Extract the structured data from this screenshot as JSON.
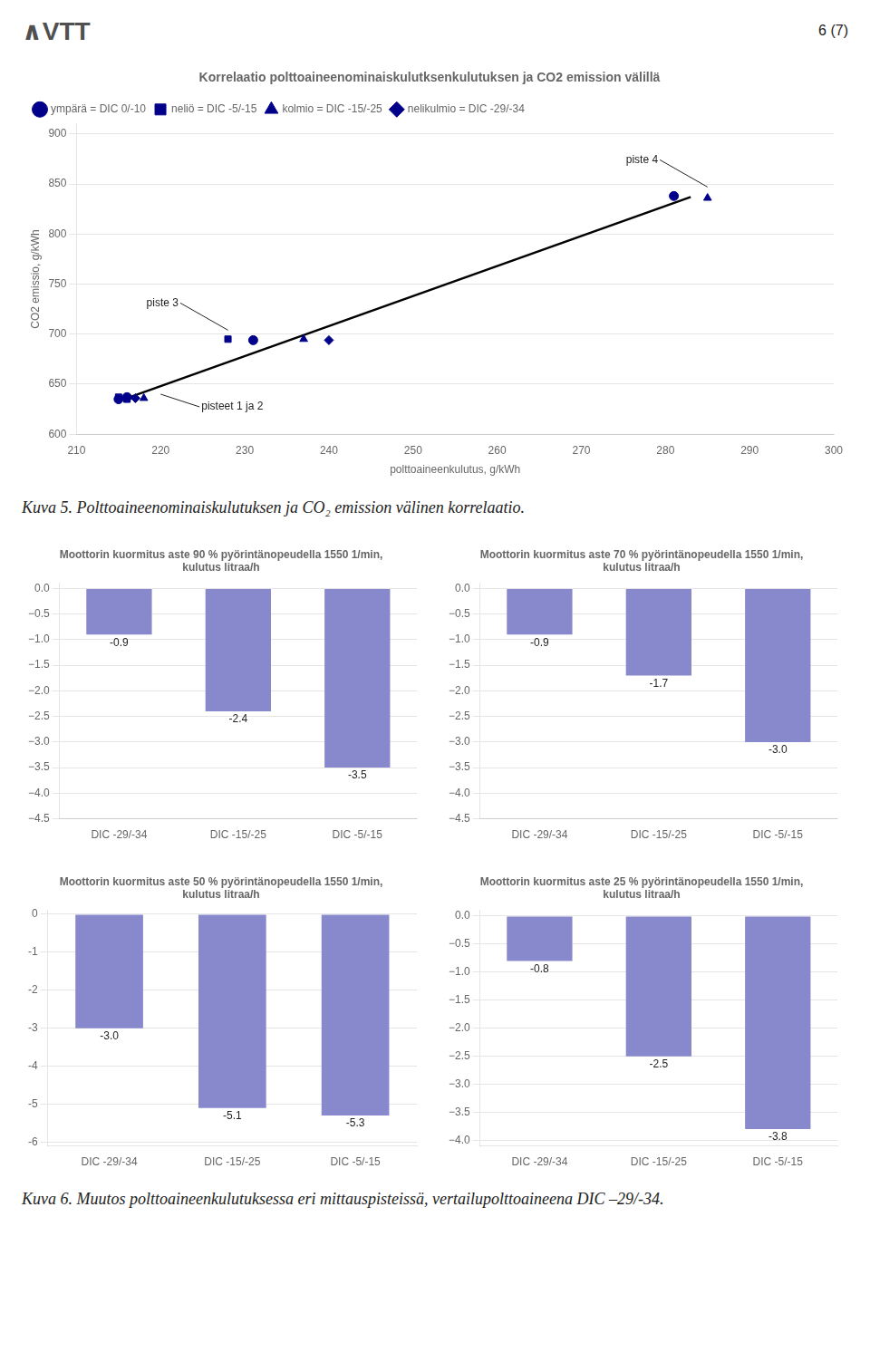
{
  "page_title": "6 (7)",
  "logo": "∧VTT",
  "captions": [
    "Kuva 5. Polttoaineenominaiskulutuksen ja CO₂ emission välinen korrelaatio.",
    "Kuva 6. Muutos polttoaineenkulutuksessa eri mittauspisteissä, vertailupolttoaineena DIC –29/-34."
  ],
  "chart_data": [
    {
      "type": "scatter",
      "title": "Korrelaatio polttoaineenominaiskulutksenkulutuksen ja CO2 emission välillä",
      "xlabel": "polttoaineenkulutus, g/kWh",
      "ylabel": "CO2 emissio, g/kWh",
      "xlim": [
        210,
        300
      ],
      "ylim": [
        600,
        910
      ],
      "xticks": [
        210,
        220,
        230,
        240,
        250,
        260,
        270,
        280,
        290,
        300
      ],
      "yticks": [
        600,
        650,
        700,
        750,
        800,
        850,
        900
      ],
      "grid": "y",
      "legend": "upper left",
      "series": [
        {
          "name": "ympärä = DIC 0/-10",
          "marker": "circle",
          "color": "#00008B",
          "x": [
            216,
            215,
            231,
            281
          ],
          "values": [
            637,
            635,
            694,
            838
          ]
        },
        {
          "name": "neliö = DIC -5/-15",
          "marker": "square",
          "color": "#00008B",
          "x": [
            215,
            216,
            228
          ],
          "values": [
            637,
            635,
            695
          ]
        },
        {
          "name": "kolmio = DIC -15/-25",
          "marker": "triangle",
          "color": "#00008B",
          "x": [
            218,
            237,
            285
          ],
          "values": [
            636,
            695,
            836
          ]
        },
        {
          "name": "nelikulmio = DIC -29/-34",
          "marker": "diamond",
          "color": "#00008B",
          "x": [
            217,
            240
          ],
          "values": [
            636,
            694
          ]
        },
        {
          "type": "line",
          "color": "#000000",
          "x": [
            216,
            283
          ],
          "values": [
            636,
            837
          ]
        }
      ],
      "annotations": [
        {
          "text": "piste 4",
          "x": 285,
          "y": 847
        },
        {
          "text": "piste 3",
          "x": 228,
          "y": 704
        },
        {
          "text": "pisteet 1 ja 2",
          "x": 220,
          "y": 640
        }
      ]
    },
    {
      "type": "bar",
      "title": "Moottorin kuormitus aste 90 % pyörintänopeudella 1550 1/min,\nkulutus litraa/h",
      "categories": [
        "DIC -29/-34",
        "DIC -15/-25",
        "DIC -5/-15"
      ],
      "values": [
        -0.9,
        -2.4,
        -3.5
      ],
      "value_labels": [
        "-0.9",
        "-2.4",
        "-3.5"
      ],
      "color": "#8888CC",
      "ylim": [
        -4.5,
        0.1
      ],
      "yticks": [
        {
          "value": 0.0,
          "label": "0.0"
        },
        {
          "value": -0.5,
          "label": "−0.5"
        },
        {
          "value": -1.0,
          "label": "−1.0"
        },
        {
          "value": -1.5,
          "label": "−1.5"
        },
        {
          "value": -2.0,
          "label": "−2.0"
        },
        {
          "value": -2.5,
          "label": "−2.5"
        },
        {
          "value": -3.0,
          "label": "−3.0"
        },
        {
          "value": -3.5,
          "label": "−3.5"
        },
        {
          "value": -4.0,
          "label": "−4.0"
        },
        {
          "value": -4.5,
          "label": "−4.5"
        }
      ],
      "grid": "y",
      "data_labels": true
    },
    {
      "type": "bar",
      "title": "Moottorin kuormitus aste 70 % pyörintänopeudella 1550 1/min,\nkulutus litraa/h",
      "categories": [
        "DIC -29/-34",
        "DIC -15/-25",
        "DIC -5/-15"
      ],
      "values": [
        -0.9,
        -1.7,
        -3.0
      ],
      "value_labels": [
        "-0.9",
        "-1.7",
        "-3.0"
      ],
      "color": "#8888CC",
      "ylim": [
        -4.5,
        0.1
      ],
      "yticks": [
        {
          "value": 0.0,
          "label": "0.0"
        },
        {
          "value": -0.5,
          "label": "−0.5"
        },
        {
          "value": -1.0,
          "label": "−1.0"
        },
        {
          "value": -1.5,
          "label": "−1.5"
        },
        {
          "value": -2.0,
          "label": "−2.0"
        },
        {
          "value": -2.5,
          "label": "−2.5"
        },
        {
          "value": -3.0,
          "label": "−3.0"
        },
        {
          "value": -3.5,
          "label": "−3.5"
        },
        {
          "value": -4.0,
          "label": "−4.0"
        },
        {
          "value": -4.5,
          "label": "−4.5"
        }
      ],
      "grid": "y",
      "data_labels": true
    },
    {
      "type": "bar",
      "title": "Moottorin kuormitus aste 50 % pyörintänopeudella 1550 1/min,\nkulutus litraa/h",
      "categories": [
        "DIC -29/-34",
        "DIC -15/-25",
        "DIC -5/-15"
      ],
      "values": [
        -3.0,
        -5.1,
        -5.3
      ],
      "value_labels": [
        "-3.0",
        "-5.1",
        "-5.3"
      ],
      "color": "#8888CC",
      "ylim": [
        -6.1,
        0.1
      ],
      "yticks": [
        0,
        -1,
        -2,
        -3,
        -4,
        -5,
        -6
      ],
      "grid": "y",
      "data_labels": true
    },
    {
      "type": "bar",
      "title": "Moottorin kuormitus aste 25 % pyörintänopeudella 1550 1/min,\nkulutus litraa/h",
      "categories": [
        "DIC -29/-34",
        "DIC -15/-25",
        "DIC -5/-15"
      ],
      "values": [
        -0.8,
        -2.5,
        -3.8
      ],
      "value_labels": [
        "-0.8",
        "-2.5",
        "-3.8"
      ],
      "color": "#8888CC",
      "ylim": [
        -4.1,
        0.1
      ],
      "yticks": [
        {
          "value": 0.0,
          "label": "0.0"
        },
        {
          "value": -0.5,
          "label": "−0.5"
        },
        {
          "value": -1.0,
          "label": "−1.0"
        },
        {
          "value": -1.5,
          "label": "−1.5"
        },
        {
          "value": -2.0,
          "label": "−2.0"
        },
        {
          "value": -2.5,
          "label": "−2.5"
        },
        {
          "value": -3.0,
          "label": "−3.0"
        },
        {
          "value": -3.5,
          "label": "−3.5"
        },
        {
          "value": -4.0,
          "label": "−4.0"
        }
      ],
      "grid": "y",
      "data_labels": true
    }
  ]
}
